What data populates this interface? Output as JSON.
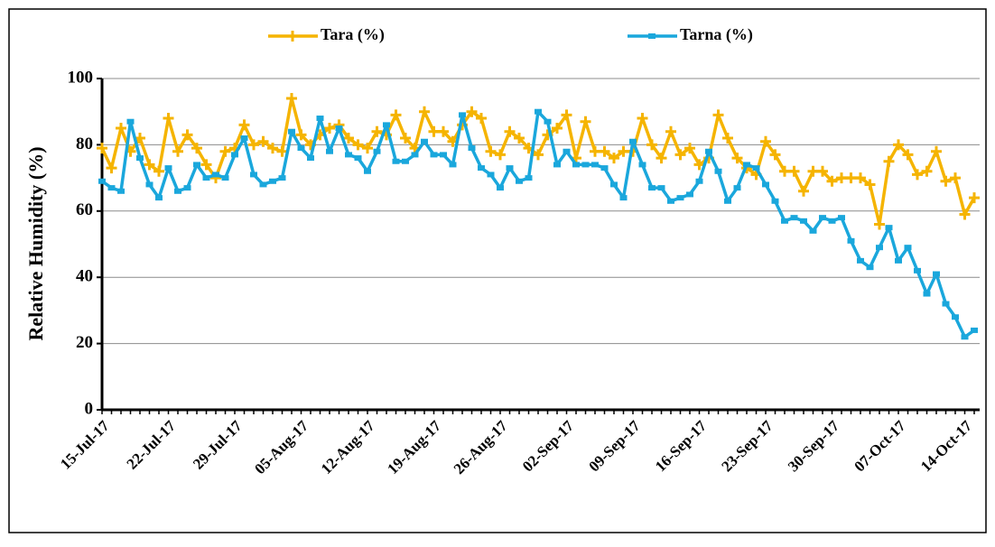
{
  "chart_data": {
    "type": "line",
    "ylabel": "Relative Humidity (%)",
    "categories": [
      "15-Jul-17",
      null,
      null,
      null,
      null,
      null,
      null,
      "22-Jul-17",
      null,
      null,
      null,
      null,
      null,
      null,
      "29-Jul-17",
      null,
      null,
      null,
      null,
      null,
      null,
      "05-Aug-17",
      null,
      null,
      null,
      null,
      null,
      null,
      "12-Aug-17",
      null,
      null,
      null,
      null,
      null,
      null,
      "19-Aug-17",
      null,
      null,
      null,
      null,
      null,
      null,
      "26-Aug-17",
      null,
      null,
      null,
      null,
      null,
      null,
      "02-Sep-17",
      null,
      null,
      null,
      null,
      null,
      null,
      "09-Sep-17",
      null,
      null,
      null,
      null,
      null,
      null,
      "16-Sep-17",
      null,
      null,
      null,
      null,
      null,
      null,
      "23-Sep-17",
      null,
      null,
      null,
      null,
      null,
      null,
      "30-Sep-17",
      null,
      null,
      null,
      null,
      null,
      null,
      "07-Oct-17",
      null,
      null,
      null,
      null,
      null,
      null,
      "14-Oct-17",
      null
    ],
    "series": [
      {
        "name": "Tara (%)",
        "color": "#F5B400",
        "marker": "plus",
        "values": [
          79,
          73,
          85,
          78,
          82,
          74,
          72,
          88,
          78,
          83,
          79,
          74,
          70,
          78,
          79,
          86,
          80,
          81,
          79,
          78,
          94,
          83,
          80,
          83,
          85,
          86,
          82,
          80,
          79,
          84,
          83,
          89,
          82,
          79,
          90,
          84,
          84,
          81,
          86,
          90,
          88,
          78,
          77,
          84,
          82,
          79,
          77,
          83,
          85,
          89,
          76,
          87,
          78,
          78,
          76,
          78,
          78,
          88,
          80,
          76,
          84,
          77,
          79,
          74,
          76,
          89,
          82,
          76,
          73,
          71,
          81,
          77,
          72,
          72,
          66,
          72,
          72,
          69,
          70,
          70,
          70,
          68,
          56,
          75,
          80,
          77,
          71,
          72,
          78,
          69,
          70,
          59,
          64
        ]
      },
      {
        "name": "Tarna (%)",
        "color": "#1AA7DC",
        "marker": "square",
        "values": [
          69,
          67,
          66,
          87,
          76,
          68,
          64,
          73,
          66,
          67,
          74,
          70,
          71,
          70,
          77,
          82,
          71,
          68,
          69,
          70,
          84,
          79,
          76,
          88,
          78,
          85,
          77,
          76,
          72,
          78,
          86,
          75,
          75,
          77,
          81,
          77,
          77,
          74,
          89,
          79,
          73,
          71,
          67,
          73,
          69,
          70,
          90,
          87,
          74,
          78,
          74,
          74,
          74,
          73,
          68,
          64,
          81,
          74,
          67,
          67,
          63,
          64,
          65,
          69,
          78,
          72,
          63,
          67,
          74,
          73,
          68,
          63,
          57,
          58,
          57,
          54,
          58,
          57,
          58,
          51,
          45,
          43,
          49,
          55,
          45,
          49,
          42,
          35,
          41,
          32,
          28,
          22,
          24
        ]
      }
    ],
    "ylim": [
      0,
      100
    ],
    "yticks": [
      0,
      20,
      40,
      60,
      80,
      100
    ],
    "grid": true
  }
}
